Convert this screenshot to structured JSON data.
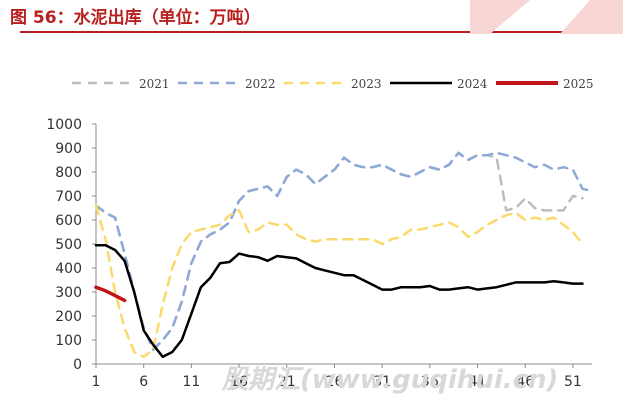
{
  "title": "图 56：水泥出库（单位：万吨）",
  "watermark": "股期汇(www.guqihui.cn)",
  "colors": {
    "title": "#b8201f",
    "s2021": "#bdbdbd",
    "s2022": "#8ea9d8",
    "s2023": "#fbd96a",
    "s2024": "#000000",
    "s2025": "#c0161a"
  },
  "chart_data": {
    "type": "line",
    "title": "",
    "xlabel": "",
    "ylabel": "",
    "xlim": [
      1,
      53
    ],
    "ylim": [
      0,
      1000
    ],
    "x_ticks": [
      1,
      6,
      11,
      16,
      21,
      26,
      31,
      36,
      41,
      46,
      51
    ],
    "y_ticks": [
      0,
      100,
      200,
      300,
      400,
      500,
      600,
      700,
      800,
      900,
      1000
    ],
    "legend_position": "top",
    "grid": false,
    "series": [
      {
        "name": "2021",
        "style": "dashed",
        "x": [
          1,
          2,
          3,
          4,
          5,
          6,
          7,
          8,
          9,
          10,
          11,
          12,
          13,
          14,
          15,
          16,
          17,
          18,
          19,
          20,
          21,
          22,
          23,
          24,
          25,
          26,
          27,
          28,
          29,
          30,
          31,
          32,
          33,
          34,
          35,
          36,
          37,
          38,
          39,
          40,
          41,
          42,
          43,
          44,
          45,
          46,
          47,
          48,
          49,
          50,
          51,
          52
        ],
        "values": [
          660,
          630,
          610,
          460,
          300,
          150,
          60,
          100,
          150,
          260,
          420,
          510,
          540,
          560,
          590,
          680,
          720,
          730,
          740,
          700,
          780,
          810,
          790,
          750,
          780,
          810,
          860,
          830,
          820,
          820,
          830,
          810,
          790,
          780,
          800,
          820,
          810,
          830,
          880,
          850,
          870,
          870,
          860,
          640,
          650,
          690,
          650,
          640,
          640,
          640,
          700,
          690
        ]
      },
      {
        "name": "2022",
        "style": "dashed",
        "x": [
          1,
          2,
          3,
          4,
          5,
          6,
          7,
          8,
          9,
          10,
          11,
          12,
          13,
          14,
          15,
          16,
          17,
          18,
          19,
          20,
          21,
          22,
          23,
          24,
          25,
          26,
          27,
          28,
          29,
          30,
          31,
          32,
          33,
          34,
          35,
          36,
          37,
          38,
          39,
          40,
          41,
          42,
          43,
          44,
          45,
          46,
          47,
          48,
          49,
          50,
          51,
          52,
          53
        ],
        "values": [
          660,
          630,
          610,
          460,
          300,
          150,
          60,
          100,
          150,
          260,
          420,
          510,
          540,
          560,
          590,
          680,
          720,
          730,
          740,
          700,
          780,
          810,
          790,
          750,
          780,
          810,
          860,
          830,
          820,
          820,
          830,
          810,
          790,
          780,
          800,
          820,
          810,
          830,
          880,
          850,
          870,
          870,
          880,
          870,
          860,
          840,
          820,
          830,
          810,
          820,
          810,
          730,
          720
        ]
      },
      {
        "name": "2023",
        "style": "dashed",
        "x": [
          1,
          2,
          3,
          4,
          5,
          6,
          7,
          8,
          9,
          10,
          11,
          12,
          13,
          14,
          15,
          16,
          17,
          18,
          19,
          20,
          21,
          22,
          23,
          24,
          25,
          26,
          27,
          28,
          29,
          30,
          31,
          32,
          33,
          34,
          35,
          36,
          37,
          38,
          39,
          40,
          41,
          42,
          43,
          44,
          45,
          46,
          47,
          48,
          49,
          50,
          51,
          52
        ],
        "values": [
          660,
          520,
          300,
          150,
          50,
          30,
          60,
          250,
          400,
          500,
          550,
          560,
          570,
          580,
          620,
          640,
          550,
          560,
          590,
          580,
          580,
          540,
          520,
          510,
          520,
          520,
          520,
          520,
          520,
          520,
          500,
          520,
          530,
          560,
          560,
          570,
          580,
          590,
          570,
          530,
          550,
          580,
          600,
          620,
          630,
          600,
          610,
          600,
          610,
          580,
          550,
          500
        ]
      },
      {
        "name": "2024",
        "style": "solid",
        "x": [
          1,
          2,
          3,
          4,
          5,
          6,
          7,
          8,
          9,
          10,
          11,
          12,
          13,
          14,
          15,
          16,
          17,
          18,
          19,
          20,
          21,
          22,
          23,
          24,
          25,
          26,
          27,
          28,
          29,
          30,
          31,
          32,
          33,
          34,
          35,
          36,
          37,
          38,
          39,
          40,
          41,
          42,
          43,
          44,
          45,
          46,
          47,
          48,
          49,
          50,
          51,
          52
        ],
        "values": [
          495,
          495,
          475,
          430,
          300,
          140,
          80,
          30,
          50,
          100,
          210,
          320,
          360,
          420,
          425,
          460,
          450,
          445,
          430,
          450,
          445,
          440,
          420,
          400,
          390,
          380,
          370,
          370,
          350,
          330,
          310,
          310,
          320,
          320,
          320,
          325,
          310,
          310,
          315,
          320,
          310,
          315,
          320,
          330,
          340,
          340,
          340,
          340,
          345,
          340,
          335,
          335
        ]
      },
      {
        "name": "2025",
        "style": "solid",
        "x": [
          1,
          2,
          3,
          4
        ],
        "values": [
          320,
          305,
          285,
          265
        ]
      }
    ]
  }
}
